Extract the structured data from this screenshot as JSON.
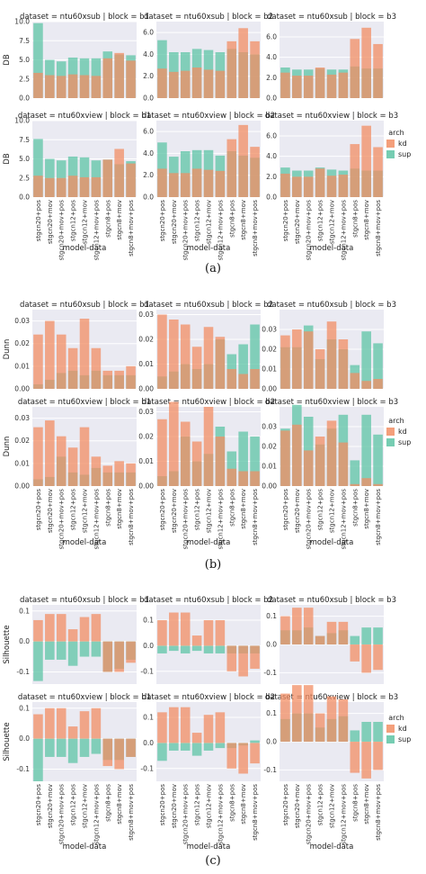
{
  "colors": {
    "kd": "#f28e64",
    "sup": "#5ec4a5",
    "panel_bg": "#eaeaf2",
    "grid": "#ffffff"
  },
  "x_label": "model-data",
  "x_tick_labels": [
    "stgcn20+pos",
    "stgcn20+mov",
    "stgcn20+mov+pos",
    "stgcn12+pos",
    "stgcn12+mov",
    "stgcn12+mov+pos",
    "stgcn8+pos",
    "stgcn8+mov",
    "stgcn8+mov+pos"
  ],
  "legend": {
    "title": "arch",
    "items": [
      "kd",
      "sup"
    ]
  },
  "chart_data": [
    {
      "type": "bar",
      "caption": "(a)",
      "ylabel": "DB",
      "ylims": [
        [
          0,
          10
        ],
        [
          0,
          7
        ],
        [
          0,
          7.5
        ]
      ],
      "yticks": [
        [
          0,
          2.5,
          5,
          7.5,
          10
        ],
        [
          0,
          2,
          4,
          6
        ],
        [
          0,
          2,
          4,
          6
        ]
      ],
      "tick_decimals": 1,
      "panels": [
        {
          "title": "dataset = ntu60xsub | block = b1",
          "sup": [
            9.8,
            5.0,
            4.8,
            5.3,
            5.2,
            5.2,
            6.1,
            5.7,
            5.6
          ],
          "kd": [
            3.3,
            3.0,
            2.9,
            3.1,
            3.0,
            2.9,
            5.2,
            5.9,
            4.9
          ]
        },
        {
          "title": "dataset = ntu60xsub | block = b2",
          "sup": [
            5.3,
            4.2,
            4.2,
            4.5,
            4.4,
            4.2,
            4.5,
            4.2,
            4.0
          ],
          "kd": [
            2.7,
            2.4,
            2.5,
            2.8,
            2.6,
            2.5,
            5.2,
            6.4,
            5.2
          ]
        },
        {
          "title": "dataset = ntu60xsub | block = b3",
          "sup": [
            3.0,
            2.8,
            2.8,
            2.9,
            2.8,
            2.8,
            3.1,
            2.9,
            2.9
          ],
          "kd": [
            2.5,
            2.2,
            2.2,
            3.0,
            2.3,
            2.5,
            5.8,
            6.9,
            5.3
          ]
        },
        {
          "title": "dataset = ntu60xview | block = b1",
          "sup": [
            7.6,
            5.0,
            4.8,
            5.3,
            5.2,
            4.8,
            4.9,
            4.3,
            4.7
          ],
          "kd": [
            2.8,
            2.5,
            2.5,
            2.8,
            2.6,
            2.6,
            4.9,
            6.3,
            4.4
          ]
        },
        {
          "title": "dataset = ntu60xview | block = b2",
          "sup": [
            5.0,
            3.7,
            4.2,
            4.3,
            4.3,
            3.8,
            4.2,
            3.8,
            3.6
          ],
          "kd": [
            2.6,
            2.2,
            2.2,
            2.6,
            2.5,
            2.4,
            5.3,
            6.6,
            4.6
          ]
        },
        {
          "title": "dataset = ntu60xview | block = b3",
          "sup": [
            2.9,
            2.6,
            2.6,
            2.9,
            2.7,
            2.6,
            2.8,
            2.6,
            2.6
          ],
          "kd": [
            2.3,
            2.0,
            2.0,
            2.8,
            2.1,
            2.2,
            5.2,
            7.0,
            4.9
          ]
        }
      ]
    },
    {
      "type": "bar",
      "caption": "(b)",
      "ylabel": "Dunn",
      "ylims": [
        [
          0,
          0.035
        ],
        [
          0,
          0.032
        ],
        [
          0,
          0.04
        ]
      ],
      "yticks": [
        [
          0,
          0.01,
          0.02,
          0.03
        ],
        [
          0,
          0.01,
          0.02,
          0.03
        ],
        [
          0,
          0.01,
          0.02,
          0.03
        ]
      ],
      "tick_decimals": 2,
      "panels": [
        {
          "title": "dataset = ntu60xsub | block = b1",
          "sup": [
            0.002,
            0.004,
            0.007,
            0.008,
            0.006,
            0.008,
            0.006,
            0.006,
            0.006
          ],
          "kd": [
            0.024,
            0.03,
            0.024,
            0.018,
            0.031,
            0.018,
            0.008,
            0.008,
            0.01
          ]
        },
        {
          "title": "dataset = ntu60xsub | block = b2",
          "sup": [
            0.005,
            0.007,
            0.01,
            0.008,
            0.01,
            0.02,
            0.014,
            0.018,
            0.026
          ],
          "kd": [
            0.03,
            0.028,
            0.026,
            0.017,
            0.025,
            0.021,
            0.008,
            0.006,
            0.008
          ]
        },
        {
          "title": "dataset = ntu60xsub | block = b3",
          "sup": [
            0.021,
            0.021,
            0.032,
            0.015,
            0.025,
            0.02,
            0.012,
            0.029,
            0.023
          ],
          "kd": [
            0.027,
            0.03,
            0.029,
            0.02,
            0.034,
            0.025,
            0.008,
            0.004,
            0.005
          ]
        },
        {
          "title": "dataset = ntu60xview | block = b1",
          "sup": [
            0.003,
            0.004,
            0.013,
            0.006,
            0.005,
            0.008,
            0.006,
            0.006,
            0.006
          ],
          "kd": [
            0.026,
            0.029,
            0.022,
            0.017,
            0.026,
            0.013,
            0.009,
            0.011,
            0.01
          ]
        },
        {
          "title": "dataset = ntu60xview | block = b2",
          "sup": [
            0.004,
            0.006,
            0.02,
            0.01,
            0.013,
            0.024,
            0.014,
            0.022,
            0.02
          ],
          "kd": [
            0.027,
            0.034,
            0.026,
            0.018,
            0.032,
            0.02,
            0.007,
            0.006,
            0.006
          ]
        },
        {
          "title": "dataset = ntu60xview | block = b3",
          "sup": [
            0.029,
            0.041,
            0.035,
            0.021,
            0.029,
            0.036,
            0.013,
            0.036,
            0.026
          ],
          "kd": [
            0.028,
            0.031,
            0.018,
            0.025,
            0.033,
            0.022,
            0.001,
            0.004,
            0.001
          ]
        }
      ]
    },
    {
      "type": "bar",
      "caption": "(c)",
      "ylabel": "Silhouette",
      "ylims": [
        [
          -0.14,
          0.12
        ],
        [
          -0.15,
          0.16
        ],
        [
          -0.14,
          0.14
        ]
      ],
      "yticks": [
        [
          -0.1,
          0.0,
          0.1
        ],
        [
          -0.1,
          0.0,
          0.1
        ],
        [
          -0.1,
          0.0,
          0.1
        ]
      ],
      "tick_decimals": 1,
      "panels": [
        {
          "title": "dataset = ntu60xsub | block = b1",
          "sup": [
            -0.13,
            -0.06,
            -0.06,
            -0.08,
            -0.05,
            -0.05,
            -0.1,
            -0.09,
            -0.06
          ],
          "kd": [
            0.07,
            0.09,
            0.09,
            0.04,
            0.08,
            0.09,
            -0.1,
            -0.1,
            -0.07
          ]
        },
        {
          "title": "dataset = ntu60xsub | block = b2",
          "sup": [
            -0.03,
            -0.02,
            -0.03,
            -0.02,
            -0.03,
            -0.03,
            -0.03,
            -0.03,
            -0.03
          ],
          "kd": [
            0.1,
            0.13,
            0.13,
            0.04,
            0.1,
            0.1,
            -0.1,
            -0.12,
            -0.09
          ]
        },
        {
          "title": "dataset = ntu60xsub | block = b3",
          "sup": [
            0.05,
            0.05,
            0.06,
            0.03,
            0.04,
            0.05,
            0.03,
            0.06,
            0.06
          ],
          "kd": [
            0.1,
            0.13,
            0.13,
            0.03,
            0.08,
            0.08,
            -0.06,
            -0.1,
            -0.09
          ]
        },
        {
          "title": "dataset = ntu60xview | block = b1",
          "sup": [
            -0.14,
            -0.06,
            -0.06,
            -0.08,
            -0.06,
            -0.05,
            -0.07,
            -0.07,
            -0.06
          ],
          "kd": [
            0.08,
            0.1,
            0.1,
            0.04,
            0.09,
            0.1,
            -0.09,
            -0.1,
            -0.06
          ]
        },
        {
          "title": "dataset = ntu60xview | block = b2",
          "sup": [
            -0.07,
            -0.03,
            -0.03,
            -0.05,
            -0.03,
            -0.02,
            -0.02,
            -0.01,
            0.01
          ],
          "kd": [
            0.12,
            0.14,
            0.14,
            0.04,
            0.11,
            0.12,
            -0.1,
            -0.12,
            -0.08
          ]
        },
        {
          "title": "dataset = ntu60xview | block = b3",
          "sup": [
            0.08,
            0.1,
            0.1,
            0.05,
            0.08,
            0.09,
            0.04,
            0.07,
            0.07
          ],
          "kd": [
            0.17,
            0.2,
            0.2,
            0.1,
            0.16,
            0.15,
            -0.11,
            -0.13,
            -0.1
          ]
        }
      ]
    }
  ]
}
